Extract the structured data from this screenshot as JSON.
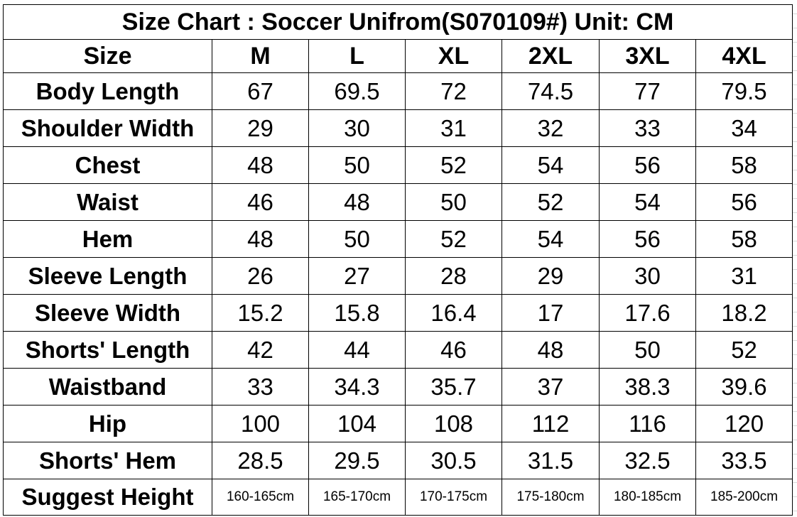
{
  "title": "Size Chart :  Soccer Unifrom(S070109#)  Unit: CM",
  "columns": [
    "Size",
    "M",
    "L",
    "XL",
    "2XL",
    "3XL",
    "4XL"
  ],
  "rows": [
    {
      "label": "Body Length",
      "values": [
        "67",
        "69.5",
        "72",
        "74.5",
        "77",
        "79.5"
      ]
    },
    {
      "label": "Shoulder Width",
      "values": [
        "29",
        "30",
        "31",
        "32",
        "33",
        "34"
      ]
    },
    {
      "label": "Chest",
      "values": [
        "48",
        "50",
        "52",
        "54",
        "56",
        "58"
      ]
    },
    {
      "label": "Waist",
      "values": [
        "46",
        "48",
        "50",
        "52",
        "54",
        "56"
      ]
    },
    {
      "label": "Hem",
      "values": [
        "48",
        "50",
        "52",
        "54",
        "56",
        "58"
      ]
    },
    {
      "label": "Sleeve Length",
      "values": [
        "26",
        "27",
        "28",
        "29",
        "30",
        "31"
      ]
    },
    {
      "label": "Sleeve Width",
      "values": [
        "15.2",
        "15.8",
        "16.4",
        "17",
        "17.6",
        "18.2"
      ]
    },
    {
      "label": "Shorts' Length",
      "values": [
        "42",
        "44",
        "46",
        "48",
        "50",
        "52"
      ]
    },
    {
      "label": "Waistband",
      "values": [
        "33",
        "34.3",
        "35.7",
        "37",
        "38.3",
        "39.6"
      ]
    },
    {
      "label": "Hip",
      "values": [
        "100",
        "104",
        "108",
        "112",
        "116",
        "120"
      ]
    },
    {
      "label": "Shorts' Hem",
      "values": [
        "28.5",
        "29.5",
        "30.5",
        "31.5",
        "32.5",
        "33.5"
      ]
    },
    {
      "label": "Suggest Height",
      "values": [
        "160-165cm",
        "165-170cm",
        "170-175cm",
        "175-180cm",
        "180-185cm",
        "185-200cm"
      ]
    }
  ]
}
